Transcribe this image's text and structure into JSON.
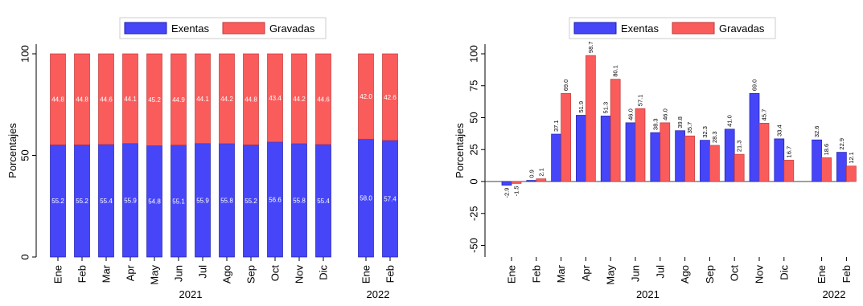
{
  "colors": {
    "exentas": "#4646f8",
    "exentas_stroke": "#1f1fb0",
    "gravadas": "#fa5c5c",
    "gravadas_stroke": "#c23a3a",
    "axis": "#000000",
    "label_light": "#ffffff"
  },
  "chart_data": [
    {
      "type": "bar",
      "stacked": true,
      "title": "",
      "ylabel": "Porcentajes",
      "ylim": [
        0,
        100
      ],
      "yticks": [
        0,
        50,
        100
      ],
      "categories": [
        "Ene",
        "Feb",
        "Mar",
        "Apr",
        "May",
        "Jun",
        "Jul",
        "Ago",
        "Sep",
        "Oct",
        "Nov",
        "Dic",
        "Ene",
        "Feb"
      ],
      "groups": [
        {
          "label": "2021",
          "count": 12
        },
        {
          "label": "2022",
          "count": 2
        }
      ],
      "legend": {
        "placement": "top-center"
      },
      "series": [
        {
          "name": "Exentas",
          "values": [
            55.2,
            55.2,
            55.4,
            55.9,
            54.8,
            55.1,
            55.9,
            55.8,
            55.2,
            56.6,
            55.8,
            55.4,
            58.0,
            57.4
          ],
          "labels": [
            "55.2",
            "55.2",
            "55.4",
            "55.9",
            "54.8",
            "55.1",
            "55.9",
            "55.8",
            "55.2",
            "56.6",
            "55.8",
            "55.4",
            "58.0",
            "57.4"
          ]
        },
        {
          "name": "Gravadas",
          "values": [
            44.8,
            44.8,
            44.6,
            44.1,
            45.2,
            44.9,
            44.1,
            44.2,
            44.8,
            43.4,
            44.2,
            44.6,
            42.0,
            42.6
          ],
          "labels": [
            "44.8",
            "44.8",
            "44.6",
            "44.1",
            "45.2",
            "44.9",
            "44.1",
            "44.2",
            "44.8",
            "43.4",
            "44.2",
            "44.6",
            "42.0",
            "42.6"
          ]
        }
      ]
    },
    {
      "type": "bar",
      "stacked": false,
      "title": "",
      "ylabel": "Porcentajes",
      "ylim": [
        -60,
        105
      ],
      "yticks": [
        -50,
        -25,
        0,
        25,
        50,
        75,
        100
      ],
      "categories": [
        "Ene",
        "Feb",
        "Mar",
        "Apr",
        "May",
        "Jun",
        "Jul",
        "Ago",
        "Sep",
        "Oct",
        "Nov",
        "Dic",
        "Ene",
        "Feb"
      ],
      "groups": [
        {
          "label": "2021",
          "count": 12
        },
        {
          "label": "2022",
          "count": 2
        }
      ],
      "legend": {
        "placement": "top-center"
      },
      "series": [
        {
          "name": "Exentas",
          "values": [
            -2.9,
            0.9,
            37.1,
            51.9,
            51.3,
            46.0,
            38.3,
            39.8,
            32.3,
            41.0,
            69.0,
            33.4,
            32.6,
            22.9
          ],
          "labels": [
            "-2.9",
            "0.9",
            "37.1",
            "51.9",
            "51.3",
            "46.0",
            "38.3",
            "39.8",
            "32.3",
            "41.0",
            "69.0",
            "33.4",
            "32.6",
            "22.9"
          ]
        },
        {
          "name": "Gravadas",
          "values": [
            -1.5,
            2.1,
            69.0,
            98.7,
            80.1,
            57.1,
            46.0,
            35.7,
            28.3,
            21.3,
            45.7,
            16.7,
            18.6,
            12.1
          ],
          "labels": [
            "-1.5",
            "2.1",
            "69.0",
            "98.7",
            "80.1",
            "57.1",
            "46.0",
            "35.7",
            "28.3",
            "21.3",
            "45.7",
            "16.7",
            "18.6",
            "12.1"
          ]
        }
      ]
    }
  ]
}
